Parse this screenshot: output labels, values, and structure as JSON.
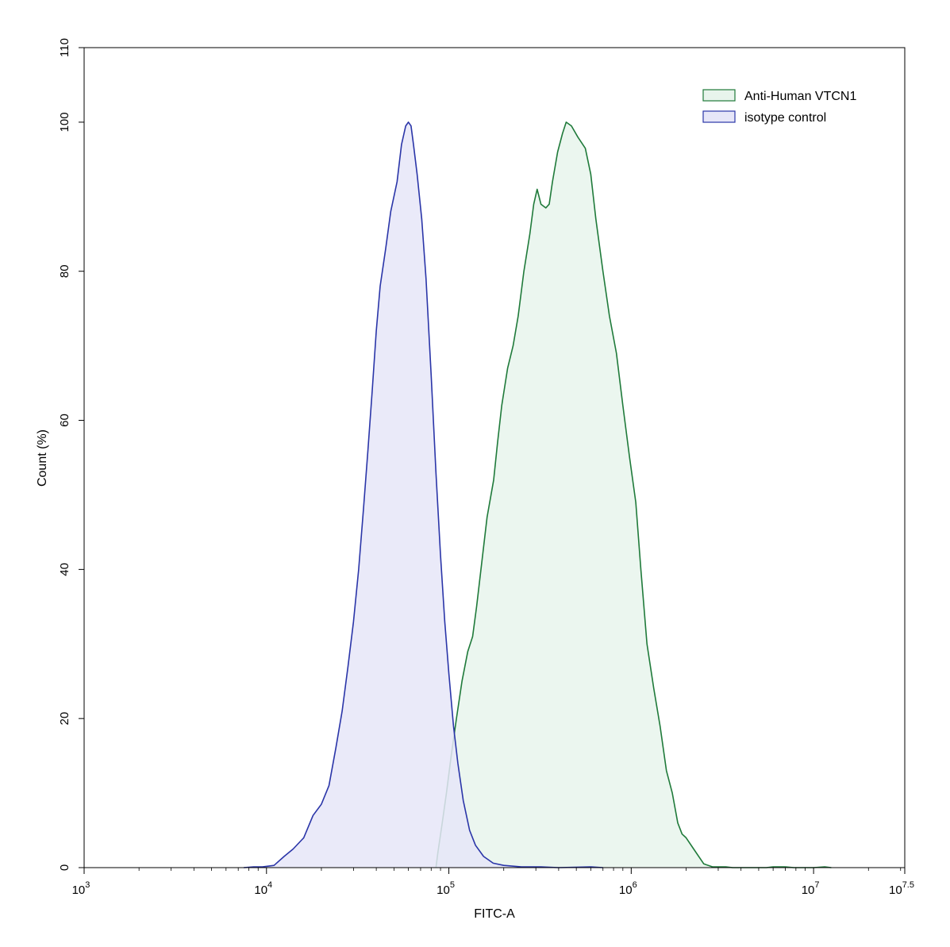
{
  "chart_data": {
    "type": "area",
    "xlabel": "FITC-A",
    "ylabel": "Count  (%)",
    "x_scale": "log10",
    "xlim": [
      1000,
      31622777
    ],
    "ylim": [
      0,
      110
    ],
    "x_ticks": [
      {
        "base": "10",
        "exp": "3",
        "value": 1000
      },
      {
        "base": "10",
        "exp": "4",
        "value": 10000
      },
      {
        "base": "10",
        "exp": "5",
        "value": 100000
      },
      {
        "base": "10",
        "exp": "6",
        "value": 1000000
      },
      {
        "base": "10",
        "exp": "7",
        "value": 10000000
      },
      {
        "base": "10",
        "exp": "7.5",
        "value": 31622777
      }
    ],
    "y_ticks": [
      "0",
      "20",
      "40",
      "60",
      "80",
      "100",
      "110"
    ],
    "y_tick_values": [
      0,
      20,
      40,
      60,
      80,
      100,
      110
    ],
    "legend_position": "top-right",
    "grid": false,
    "series": [
      {
        "name": "Anti-Human VTCN1",
        "stroke": "#1f7a3a",
        "fill": "#e8f4ec",
        "points": [
          [
            85000,
            0
          ],
          [
            87000,
            2
          ],
          [
            92000,
            6
          ],
          [
            97000,
            10
          ],
          [
            103000,
            15
          ],
          [
            110000,
            20
          ],
          [
            118000,
            25
          ],
          [
            127000,
            29
          ],
          [
            135000,
            31
          ],
          [
            142000,
            35
          ],
          [
            150000,
            40
          ],
          [
            162000,
            47
          ],
          [
            176000,
            52
          ],
          [
            185000,
            57
          ],
          [
            195000,
            62
          ],
          [
            210000,
            67
          ],
          [
            225000,
            70
          ],
          [
            240000,
            74
          ],
          [
            258000,
            80
          ],
          [
            278000,
            85
          ],
          [
            292000,
            89
          ],
          [
            305000,
            91
          ],
          [
            320000,
            89
          ],
          [
            340000,
            88.5
          ],
          [
            355000,
            89
          ],
          [
            370000,
            92
          ],
          [
            395000,
            96
          ],
          [
            420000,
            98.5
          ],
          [
            440000,
            100
          ],
          [
            470000,
            99.5
          ],
          [
            510000,
            98
          ],
          [
            560000,
            96.5
          ],
          [
            600000,
            93
          ],
          [
            640000,
            87
          ],
          [
            700000,
            80
          ],
          [
            760000,
            74
          ],
          [
            830000,
            69
          ],
          [
            900000,
            62
          ],
          [
            980000,
            55
          ],
          [
            1060000,
            49
          ],
          [
            1130000,
            40
          ],
          [
            1220000,
            30
          ],
          [
            1330000,
            24
          ],
          [
            1440000,
            19
          ],
          [
            1560000,
            13
          ],
          [
            1680000,
            10
          ],
          [
            1800000,
            6
          ],
          [
            1900000,
            4.5
          ],
          [
            2000000,
            4
          ],
          [
            2200000,
            2.5
          ],
          [
            2500000,
            0.5
          ],
          [
            2800000,
            0.1
          ],
          [
            3300000,
            0.1
          ],
          [
            3600000,
            0
          ],
          [
            5500000,
            0
          ],
          [
            6000000,
            0.1
          ],
          [
            7000000,
            0.1
          ],
          [
            7800000,
            0
          ],
          [
            10000000,
            0
          ],
          [
            11500000,
            0.1
          ],
          [
            12500000,
            0
          ]
        ]
      },
      {
        "name": "isotype control",
        "stroke": "#2a35a8",
        "fill": "#e6e6f8",
        "points": [
          [
            7500,
            0
          ],
          [
            8500,
            0.1
          ],
          [
            9500,
            0.1
          ],
          [
            11000,
            0.3
          ],
          [
            12500,
            1.5
          ],
          [
            14000,
            2.5
          ],
          [
            16000,
            4
          ],
          [
            18000,
            7
          ],
          [
            20000,
            8.5
          ],
          [
            22000,
            11
          ],
          [
            24000,
            16
          ],
          [
            26000,
            21
          ],
          [
            28000,
            27
          ],
          [
            30000,
            33
          ],
          [
            32000,
            40
          ],
          [
            34000,
            48
          ],
          [
            36000,
            56
          ],
          [
            38000,
            64
          ],
          [
            40000,
            72
          ],
          [
            42000,
            78
          ],
          [
            45000,
            83
          ],
          [
            48000,
            88
          ],
          [
            52000,
            92
          ],
          [
            55000,
            97
          ],
          [
            58000,
            99.5
          ],
          [
            60000,
            100
          ],
          [
            62000,
            99.5
          ],
          [
            64000,
            97
          ],
          [
            67000,
            93
          ],
          [
            71000,
            87
          ],
          [
            75000,
            79
          ],
          [
            80000,
            66
          ],
          [
            85000,
            53
          ],
          [
            90000,
            42
          ],
          [
            95000,
            33
          ],
          [
            100000,
            26
          ],
          [
            106000,
            19
          ],
          [
            112000,
            14
          ],
          [
            120000,
            9
          ],
          [
            130000,
            5
          ],
          [
            140000,
            3
          ],
          [
            155000,
            1.5
          ],
          [
            175000,
            0.6
          ],
          [
            200000,
            0.3
          ],
          [
            250000,
            0.1
          ],
          [
            320000,
            0.1
          ],
          [
            400000,
            0
          ],
          [
            600000,
            0.1
          ],
          [
            700000,
            0
          ]
        ]
      }
    ]
  }
}
